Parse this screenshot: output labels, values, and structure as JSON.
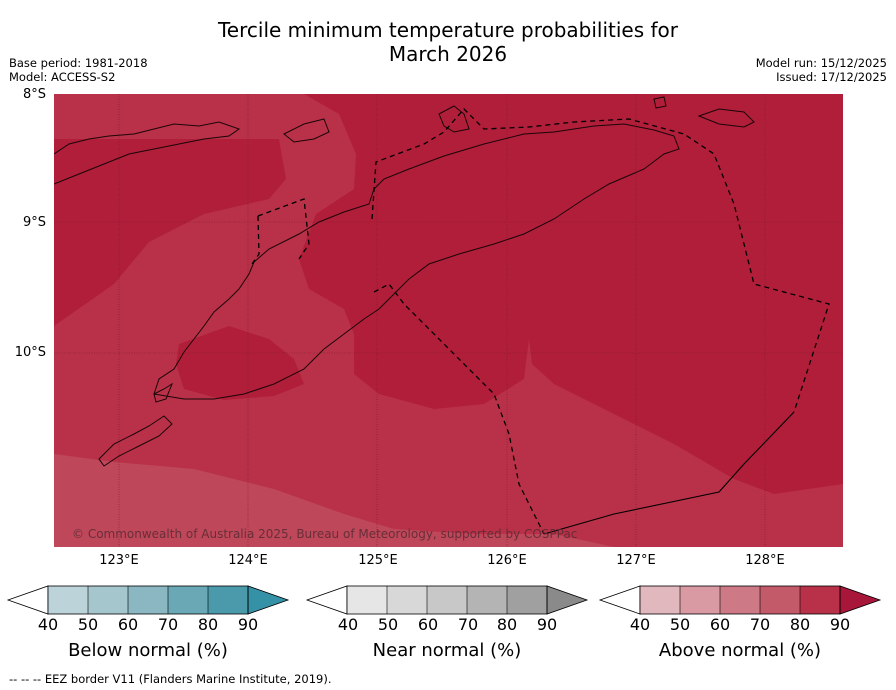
{
  "title_line1": "Tercile minimum temperature probabilities for",
  "title_line2": "March 2026",
  "base_period": "Base period: 1981-2018",
  "model": "Model: ACCESS-S2",
  "model_run": "Model run: 15/12/2025",
  "issued": "Issued: 17/12/2025",
  "lat_labels": [
    "8°S",
    "9°S",
    "10°S"
  ],
  "lon_labels": [
    "123°E",
    "124°E",
    "125°E",
    "126°E",
    "127°E",
    "128°E"
  ],
  "copyright": "© Commonwealth of Australia 2025, Bureau of Meteorology, supported by COSPPac",
  "colorbars": [
    {
      "name": "below",
      "title": "Below normal (%)",
      "ticks": [
        "40",
        "50",
        "60",
        "70",
        "80",
        "90"
      ],
      "colors": [
        "#ffffff",
        "#bcd3da",
        "#a6c6cd",
        "#8ab7c1",
        "#6ba8b5",
        "#4a9aab",
        "#3591a6"
      ]
    },
    {
      "name": "near",
      "title": "Near normal (%)",
      "ticks": [
        "40",
        "50",
        "60",
        "70",
        "80",
        "90"
      ],
      "colors": [
        "#ffffff",
        "#e6e6e6",
        "#d8d8d8",
        "#c8c8c8",
        "#b4b4b4",
        "#a0a0a0",
        "#8a8a8a"
      ]
    },
    {
      "name": "above",
      "title": "Above normal (%)",
      "ticks": [
        "40",
        "50",
        "60",
        "70",
        "80",
        "90"
      ],
      "colors": [
        "#ffffff",
        "#e2b8bf",
        "#d99aa4",
        "#cd7a86",
        "#c35a6a",
        "#b93148",
        "#a8163a"
      ]
    }
  ],
  "footer": "--  --  -- EEZ border V11 (Flanders Marine Institute, 2019).",
  "map_colors": {
    "above_70_80": "#c35a6a",
    "above_80_90": "#b93148",
    "above_90": "#b11e3a"
  }
}
